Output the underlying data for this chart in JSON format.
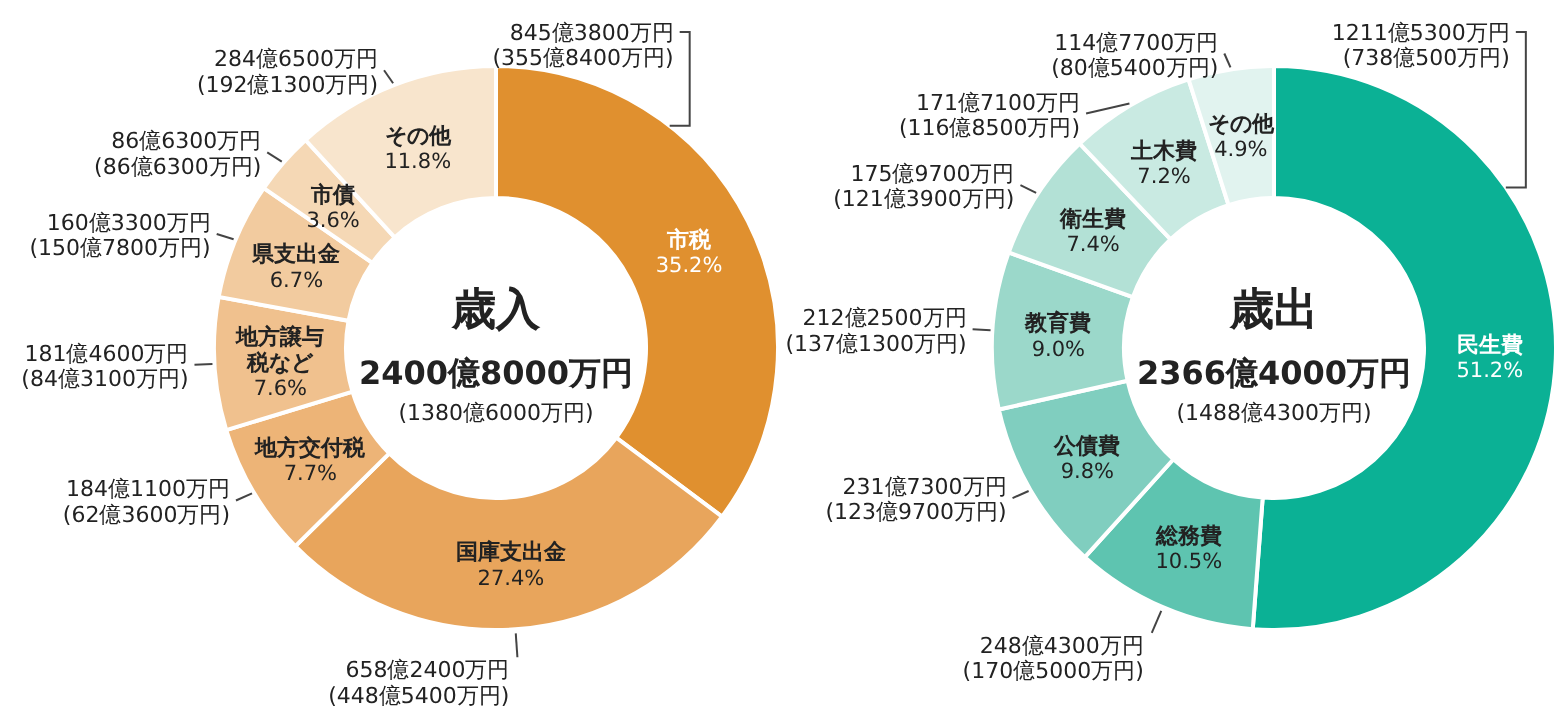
{
  "chart_data": [
    {
      "type": "donut",
      "title": "歳入",
      "subtitle": "2400億8000万円",
      "categories": [
        "市税",
        "国庫支出金",
        "地方交付税",
        "地方譲与税など",
        "県支出金",
        "市債",
        "その他"
      ],
      "values": [
        35.2,
        27.4,
        7.7,
        7.6,
        6.7,
        3.6,
        11.8
      ],
      "value_labels": [
        "35.2%",
        "27.4%",
        "7.7%",
        "7.6%",
        "6.7%",
        "3.6%",
        "11.8%"
      ],
      "colors": [
        "#e0902f",
        "#e8a55c",
        "#edb477",
        "#f0c18e",
        "#f2cb9f",
        "#f5d8b5",
        "#f8e5cd"
      ],
      "annotations": [
        {
          "text": "845億3800万円\n(355億8400万円)",
          "x": "市税"
        },
        {
          "text": "658億2400万円\n(448億5400万円)",
          "x": "国庫支出金"
        },
        {
          "text": "184億1100万円\n(62億3600万円)",
          "x": "地方交付税"
        },
        {
          "text": "181億4600万円\n(84億3100万円)",
          "x": "地方譲与税など"
        },
        {
          "text": "160億3300万円\n(150億7800万円)",
          "x": "県支出金"
        },
        {
          "text": "86億6300万円\n(86億6300万円)",
          "x": "市債"
        },
        {
          "text": "284億6500万円\n(192億1300万円)",
          "x": "その他"
        },
        "(1380億6000万円)"
      ]
    },
    {
      "type": "donut",
      "title": "歳出",
      "subtitle": "2366億4000万円",
      "categories": [
        "民生費",
        "総務費",
        "公債費",
        "教育費",
        "衛生費",
        "土木費",
        "その他"
      ],
      "values": [
        51.2,
        10.5,
        9.8,
        9.0,
        7.4,
        7.2,
        4.9
      ],
      "value_labels": [
        "51.2%",
        "10.5%",
        "9.8%",
        "9.0%",
        "7.4%",
        "7.2%",
        "4.9%"
      ],
      "colors": [
        "#0bb195",
        "#5ec4b0",
        "#80cebf",
        "#9bd8ca",
        "#b3e1d6",
        "#c9eae2",
        "#e1f3ef"
      ],
      "annotations": [
        {
          "text": "1211億5300万円\n(738億500万円)",
          "x": "民生費"
        },
        {
          "text": "248億4300万円\n(170億5000万円)",
          "x": "総務費"
        },
        {
          "text": "231億7300万円\n(123億9700万円)",
          "x": "公債費"
        },
        {
          "text": "212億2500万円\n(137億1300万円)",
          "x": "教育費"
        },
        {
          "text": "175億9700万円\n(121億3900万円)",
          "x": "衛生費"
        },
        {
          "text": "171億7100万円\n(116億8500万円)",
          "x": "土木費"
        },
        {
          "text": "114億7700万円\n(80億5400万円)",
          "x": "その他"
        },
        "(1488億4300万円)"
      ]
    }
  ]
}
